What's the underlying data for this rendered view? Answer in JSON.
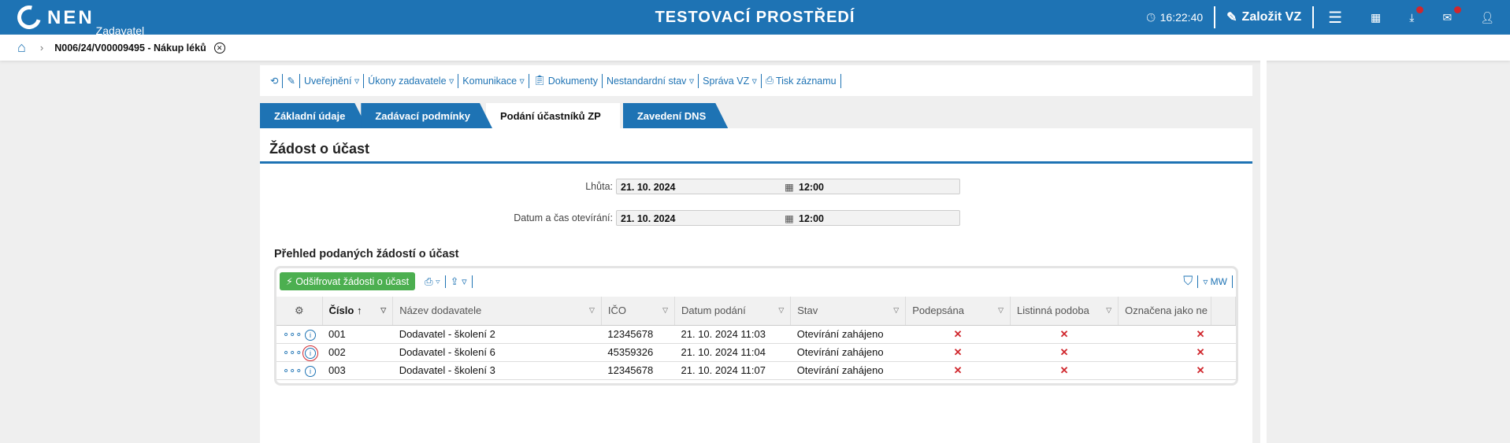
{
  "header": {
    "logo": "NEN",
    "logo_sub": "Zadavatel",
    "environment": "TESTOVACÍ PROSTŘEDÍ",
    "time": "16:22:40",
    "create_label": "Založit VZ",
    "accent": "#1e73b4"
  },
  "breadcrumb": {
    "title": "N006/24/V00009495 - Nákup léků"
  },
  "toolbar": {
    "items": [
      "Uveřejnění ▿",
      "Úkony zadavatele ▿",
      "Komunikace ▿",
      "Dokumenty",
      "Nestandardní stav ▿",
      "Správa VZ ▿",
      "Tisk záznamu"
    ]
  },
  "tabs": [
    "Základní údaje",
    "Zadávací podmínky",
    "Podání účastníků ZP",
    "Zavedení DNS"
  ],
  "panel": {
    "title": "Žádost o účast",
    "deadline": {
      "label": "Lhůta:",
      "date": "21. 10. 2024",
      "time": "12:00"
    },
    "opening": {
      "label": "Datum a čas otevírání:",
      "date": "21. 10. 2024",
      "time": "12:00"
    },
    "section": "Přehled podaných žádostí o účast"
  },
  "grid": {
    "decrypt_button": "Odšifrovat žádosti o účast",
    "mw": "MW",
    "columns": [
      "Číslo",
      "Název dodavatele",
      "IČO",
      "Datum podání",
      "Stav",
      "Podepsána",
      "Listinná podoba",
      "Označena jako ne"
    ],
    "rows": [
      {
        "cislo": "001",
        "nazev": "Dodavatel - školení 2",
        "ico": "12345678",
        "datum": "21. 10. 2024 11:03",
        "stav": "Otevírání zahájeno",
        "podepsana": "✕",
        "listinna": "✕",
        "oznacena": "✕"
      },
      {
        "cislo": "002",
        "nazev": "Dodavatel - školení 6",
        "ico": "45359326",
        "datum": "21. 10. 2024 11:04",
        "stav": "Otevírání zahájeno",
        "podepsana": "✕",
        "listinna": "✕",
        "oznacena": "✕"
      },
      {
        "cislo": "003",
        "nazev": "Dodavatel - školení 3",
        "ico": "12345678",
        "datum": "21. 10. 2024 11:07",
        "stav": "Otevírání zahájeno",
        "podepsana": "✕",
        "listinna": "✕",
        "oznacena": "✕"
      }
    ]
  }
}
